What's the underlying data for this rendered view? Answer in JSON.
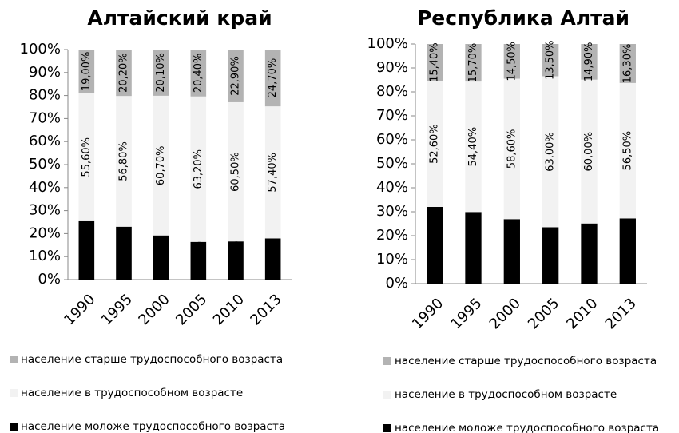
{
  "chart_data": [
    {
      "type": "bar",
      "stacked": true,
      "title": "Алтайский край",
      "categories": [
        "1990",
        "1995",
        "2000",
        "2005",
        "2010",
        "2013"
      ],
      "series": [
        {
          "name": "население старше трудоспособного возраста",
          "color": "#b3b3b3",
          "values": [
            19.0,
            20.2,
            20.1,
            20.4,
            22.9,
            24.7
          ],
          "value_labels": [
            "19,00%",
            "20,20%",
            "20,10%",
            "20,40%",
            "22,90%",
            "24,70%"
          ]
        },
        {
          "name": "население в трудоспособном возрасте",
          "color": "#f2f2f2",
          "values": [
            55.6,
            56.8,
            60.7,
            63.2,
            60.5,
            57.4
          ],
          "value_labels": [
            "55,60%",
            "56,80%",
            "60,70%",
            "63,20%",
            "60,50%",
            "57,40%"
          ]
        },
        {
          "name": "население моложе трудоспособного возраста",
          "color": "#000000",
          "values": [
            25.4,
            23.0,
            19.2,
            16.4,
            16.6,
            17.9
          ],
          "value_labels": [
            "25,40%",
            "23,00%",
            "19,20%",
            "16,40%",
            "16,60%",
            "17,90%"
          ]
        }
      ],
      "ylim": [
        0,
        100
      ],
      "yticks": [
        {
          "value": 0,
          "label": "0%"
        },
        {
          "value": 10,
          "label": "10%"
        },
        {
          "value": 20,
          "label": "20%"
        },
        {
          "value": 30,
          "label": "30%"
        },
        {
          "value": 40,
          "label": "40%"
        },
        {
          "value": 50,
          "label": "50%"
        },
        {
          "value": 60,
          "label": "60%"
        },
        {
          "value": 70,
          "label": "70%"
        },
        {
          "value": 80,
          "label": "80%"
        },
        {
          "value": 90,
          "label": "90%"
        },
        {
          "value": 100,
          "label": "100%"
        }
      ],
      "legend": "bottom"
    },
    {
      "type": "bar",
      "stacked": true,
      "title": "Республика Алтай",
      "categories": [
        "1990",
        "1995",
        "2000",
        "2005",
        "2010",
        "2013"
      ],
      "series": [
        {
          "name": "население старше трудоспособного возраста",
          "color": "#b3b3b3",
          "values": [
            15.4,
            15.7,
            14.5,
            13.5,
            14.9,
            16.3
          ],
          "value_labels": [
            "15,40%",
            "15,70%",
            "14,50%",
            "13,50%",
            "14,90%",
            "16,30%"
          ]
        },
        {
          "name": "население в трудоспособном возрасте",
          "color": "#f2f2f2",
          "values": [
            52.6,
            54.4,
            58.6,
            63.0,
            60.0,
            56.5
          ],
          "value_labels": [
            "52,60%",
            "54,40%",
            "58,60%",
            "63,00%",
            "60,00%",
            "56,50%"
          ]
        },
        {
          "name": "население моложе трудоспособного возраста",
          "color": "#000000",
          "values": [
            32.0,
            29.9,
            26.9,
            23.5,
            25.1,
            27.2
          ],
          "value_labels": [
            "32,00%",
            "29,90%",
            "26,90%",
            "23,50%",
            "25,10%",
            "27,20%"
          ]
        }
      ],
      "ylim": [
        0,
        100
      ],
      "yticks": [
        {
          "value": 0,
          "label": "0%"
        },
        {
          "value": 10,
          "label": "10%"
        },
        {
          "value": 20,
          "label": "20%"
        },
        {
          "value": 30,
          "label": "30%"
        },
        {
          "value": 40,
          "label": "40%"
        },
        {
          "value": 50,
          "label": "50%"
        },
        {
          "value": 60,
          "label": "60%"
        },
        {
          "value": 70,
          "label": "70%"
        },
        {
          "value": 80,
          "label": "80%"
        },
        {
          "value": 90,
          "label": "90%"
        },
        {
          "value": 100,
          "label": "100%"
        }
      ],
      "legend": "bottom"
    }
  ]
}
